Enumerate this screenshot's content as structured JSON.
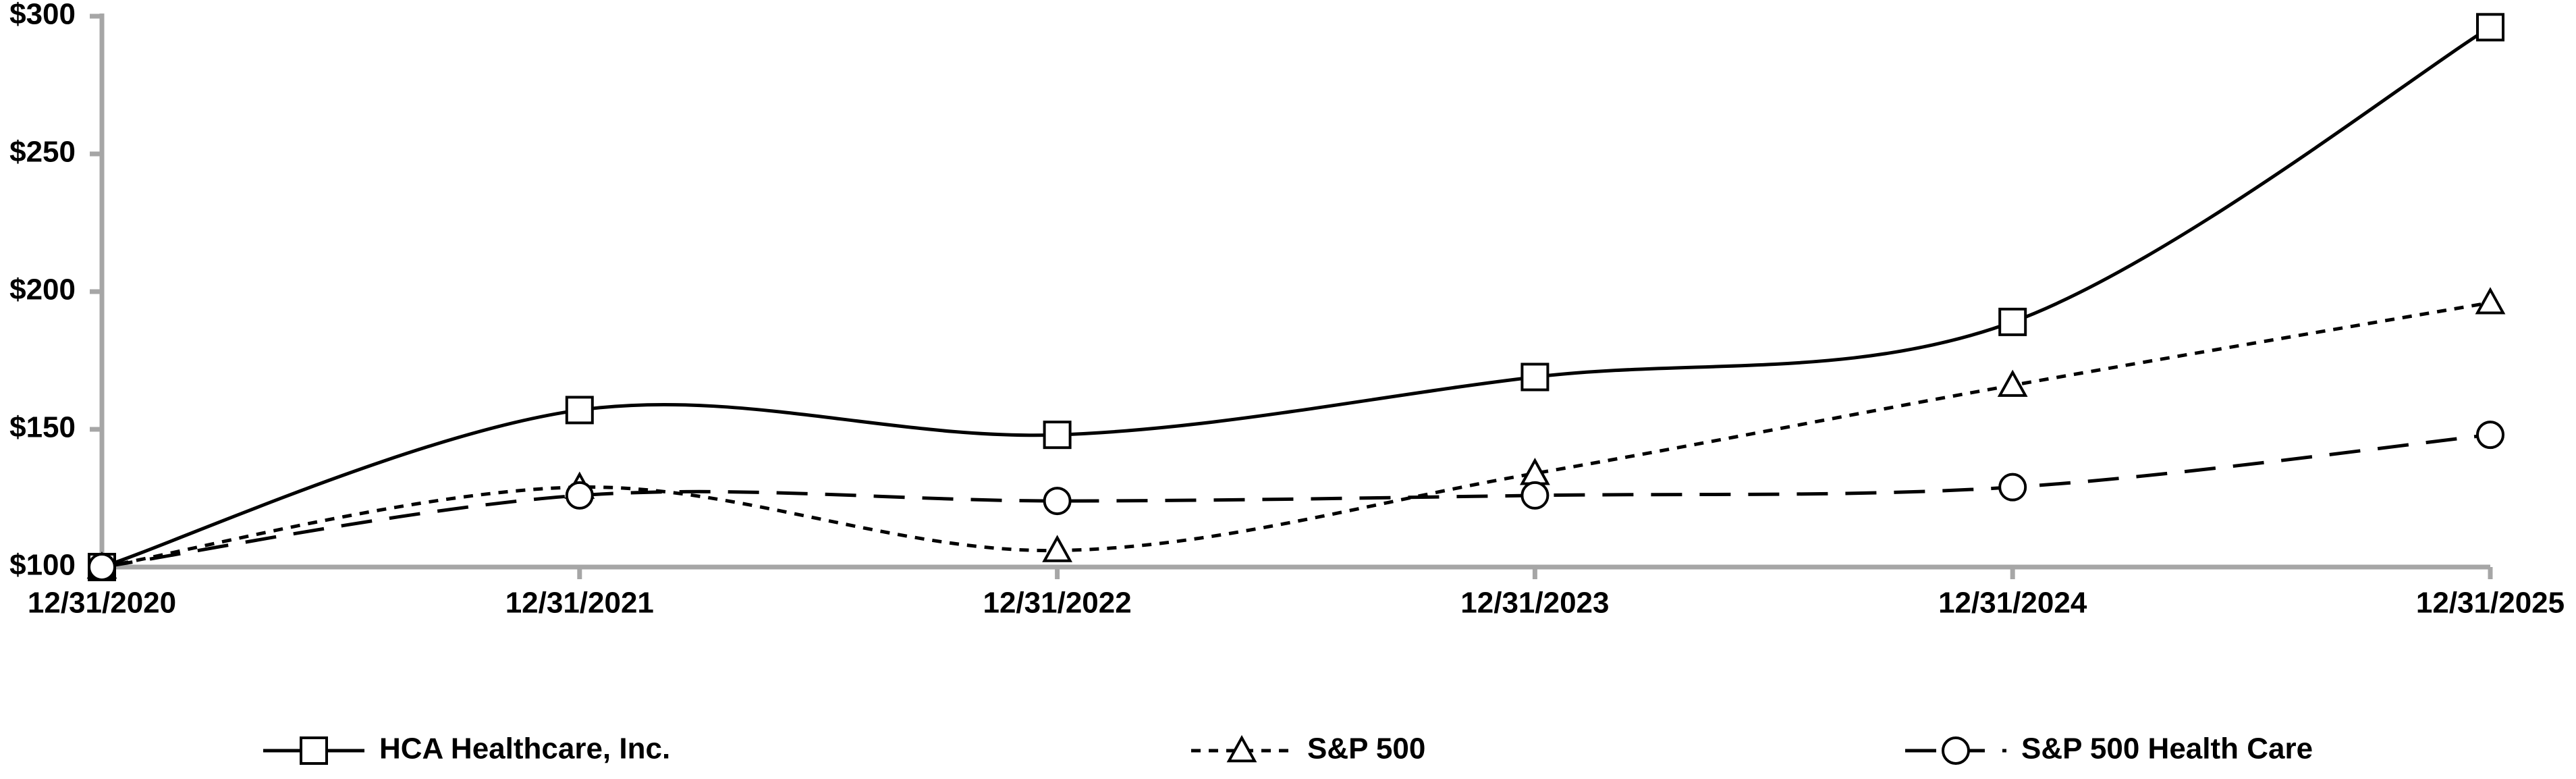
{
  "chart_data": {
    "type": "line",
    "categories": [
      "12/31/2020",
      "12/31/2021",
      "12/31/2022",
      "12/31/2023",
      "12/31/2024",
      "12/31/2025"
    ],
    "series": [
      {
        "name": "HCA Healthcare, Inc.",
        "color": "#000000",
        "marker": "square",
        "line_style": "solid",
        "values": [
          100,
          157,
          148,
          169,
          189,
          296
        ]
      },
      {
        "name": "S&P 500",
        "color": "#000000",
        "marker": "triangle",
        "line_style": "short-dash",
        "values": [
          100,
          129,
          106,
          134,
          166,
          196
        ]
      },
      {
        "name": "S&P 500 Health Care",
        "color": "#000000",
        "marker": "circle",
        "line_style": "long-dash",
        "values": [
          100,
          126,
          124,
          126,
          129,
          148
        ]
      }
    ],
    "ylim": [
      100,
      300
    ],
    "yticks": [
      {
        "value": 100,
        "label": "$100"
      },
      {
        "value": 150,
        "label": "$150"
      },
      {
        "value": 200,
        "label": "$200"
      },
      {
        "value": 250,
        "label": "$250"
      },
      {
        "value": 300,
        "label": "$300"
      }
    ],
    "grid": false,
    "smooth": true,
    "legend": "bottom"
  }
}
